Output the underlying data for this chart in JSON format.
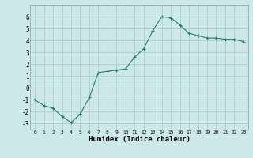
{
  "x": [
    0,
    1,
    2,
    3,
    4,
    5,
    6,
    7,
    8,
    9,
    10,
    11,
    12,
    13,
    14,
    15,
    16,
    17,
    18,
    19,
    20,
    21,
    22,
    23
  ],
  "y": [
    -1.0,
    -1.5,
    -1.7,
    -2.4,
    -2.9,
    -2.2,
    -0.8,
    1.3,
    1.4,
    1.5,
    1.6,
    2.6,
    3.3,
    4.8,
    6.0,
    5.9,
    5.3,
    4.6,
    4.4,
    4.2,
    4.2,
    4.1,
    4.1,
    3.9
  ],
  "xlabel": "Humidex (Indice chaleur)",
  "ylim": [
    -3.5,
    7.0
  ],
  "xlim": [
    -0.5,
    23.5
  ],
  "yticks": [
    -3,
    -2,
    -1,
    0,
    1,
    2,
    3,
    4,
    5,
    6
  ],
  "xticks": [
    0,
    1,
    2,
    3,
    4,
    5,
    6,
    7,
    8,
    9,
    10,
    11,
    12,
    13,
    14,
    15,
    16,
    17,
    18,
    19,
    20,
    21,
    22,
    23
  ],
  "line_color": "#2d7a6e",
  "marker": "+",
  "bg_color": "#cce8e8",
  "grid_color": "#aad0d0",
  "title": ""
}
